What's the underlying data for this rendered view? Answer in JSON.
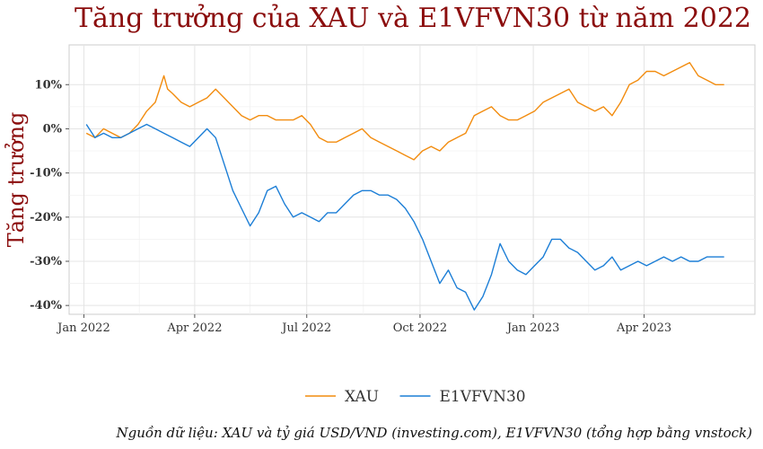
{
  "chart_data": {
    "type": "line",
    "title": "Tăng trưởng của XAU và E1VFVN30 từ năm 2022",
    "ylabel": "Tăng trưởng",
    "xlabel": "",
    "caption": "Nguồn dữ liệu: XAU và tỷ giá USD/VND (investing.com), E1VFVN30 (tổng hợp bằng vnstock)",
    "xlim": [
      "2021-12-20",
      "2023-06-30"
    ],
    "ylim": [
      -42,
      19
    ],
    "x_ticks": [
      {
        "date": "2022-01-01",
        "label": "Jan 2022"
      },
      {
        "date": "2022-04-01",
        "label": "Apr 2022"
      },
      {
        "date": "2022-07-01",
        "label": "Jul 2022"
      },
      {
        "date": "2022-10-01",
        "label": "Oct 2022"
      },
      {
        "date": "2023-01-01",
        "label": "Jan 2023"
      },
      {
        "date": "2023-04-01",
        "label": "Apr 2023"
      }
    ],
    "y_ticks": [
      {
        "value": 10,
        "label": "10%"
      },
      {
        "value": 0,
        "label": "0%"
      },
      {
        "value": -10,
        "label": "-10%"
      },
      {
        "value": -20,
        "label": "-20%"
      },
      {
        "value": -30,
        "label": "-30%"
      },
      {
        "value": -40,
        "label": "-40%"
      }
    ],
    "grid": true,
    "legend_position": "bottom",
    "series": [
      {
        "name": "XAU",
        "color": "#f28c0f",
        "points": [
          [
            "2022-01-03",
            -1
          ],
          [
            "2022-01-10",
            -2
          ],
          [
            "2022-01-17",
            0
          ],
          [
            "2022-01-24",
            -1
          ],
          [
            "2022-01-31",
            -2
          ],
          [
            "2022-02-07",
            -1
          ],
          [
            "2022-02-14",
            1
          ],
          [
            "2022-02-21",
            4
          ],
          [
            "2022-02-28",
            6
          ],
          [
            "2022-03-07",
            12
          ],
          [
            "2022-03-10",
            9
          ],
          [
            "2022-03-14",
            8
          ],
          [
            "2022-03-21",
            6
          ],
          [
            "2022-03-28",
            5
          ],
          [
            "2022-04-04",
            6
          ],
          [
            "2022-04-11",
            7
          ],
          [
            "2022-04-18",
            9
          ],
          [
            "2022-04-25",
            7
          ],
          [
            "2022-05-02",
            5
          ],
          [
            "2022-05-09",
            3
          ],
          [
            "2022-05-16",
            2
          ],
          [
            "2022-05-23",
            3
          ],
          [
            "2022-05-30",
            3
          ],
          [
            "2022-06-06",
            2
          ],
          [
            "2022-06-13",
            2
          ],
          [
            "2022-06-20",
            2
          ],
          [
            "2022-06-27",
            3
          ],
          [
            "2022-07-04",
            1
          ],
          [
            "2022-07-11",
            -2
          ],
          [
            "2022-07-18",
            -3
          ],
          [
            "2022-07-25",
            -3
          ],
          [
            "2022-08-01",
            -2
          ],
          [
            "2022-08-08",
            -1
          ],
          [
            "2022-08-15",
            0
          ],
          [
            "2022-08-22",
            -2
          ],
          [
            "2022-08-29",
            -3
          ],
          [
            "2022-09-05",
            -4
          ],
          [
            "2022-09-12",
            -5
          ],
          [
            "2022-09-19",
            -6
          ],
          [
            "2022-09-26",
            -7
          ],
          [
            "2022-10-03",
            -5
          ],
          [
            "2022-10-10",
            -4
          ],
          [
            "2022-10-17",
            -5
          ],
          [
            "2022-10-24",
            -3
          ],
          [
            "2022-10-31",
            -2
          ],
          [
            "2022-11-07",
            -1
          ],
          [
            "2022-11-14",
            3
          ],
          [
            "2022-11-21",
            4
          ],
          [
            "2022-11-28",
            5
          ],
          [
            "2022-12-05",
            3
          ],
          [
            "2022-12-12",
            2
          ],
          [
            "2022-12-19",
            2
          ],
          [
            "2022-12-26",
            3
          ],
          [
            "2023-01-02",
            4
          ],
          [
            "2023-01-09",
            6
          ],
          [
            "2023-01-16",
            7
          ],
          [
            "2023-01-23",
            8
          ],
          [
            "2023-01-30",
            9
          ],
          [
            "2023-02-06",
            6
          ],
          [
            "2023-02-13",
            5
          ],
          [
            "2023-02-20",
            4
          ],
          [
            "2023-02-27",
            5
          ],
          [
            "2023-03-06",
            3
          ],
          [
            "2023-03-13",
            6
          ],
          [
            "2023-03-20",
            10
          ],
          [
            "2023-03-27",
            11
          ],
          [
            "2023-04-03",
            13
          ],
          [
            "2023-04-10",
            13
          ],
          [
            "2023-04-17",
            12
          ],
          [
            "2023-04-24",
            13
          ],
          [
            "2023-05-01",
            14
          ],
          [
            "2023-05-08",
            15
          ],
          [
            "2023-05-15",
            12
          ],
          [
            "2023-05-22",
            11
          ],
          [
            "2023-05-29",
            10
          ],
          [
            "2023-06-05",
            10
          ]
        ]
      },
      {
        "name": "E1VFVN30",
        "color": "#1c7ed6",
        "points": [
          [
            "2022-01-03",
            1
          ],
          [
            "2022-01-10",
            -2
          ],
          [
            "2022-01-17",
            -1
          ],
          [
            "2022-01-24",
            -2
          ],
          [
            "2022-01-31",
            -2
          ],
          [
            "2022-02-07",
            -1
          ],
          [
            "2022-02-14",
            0
          ],
          [
            "2022-02-21",
            1
          ],
          [
            "2022-02-28",
            0
          ],
          [
            "2022-03-07",
            -1
          ],
          [
            "2022-03-14",
            -2
          ],
          [
            "2022-03-21",
            -3
          ],
          [
            "2022-03-28",
            -4
          ],
          [
            "2022-04-04",
            -2
          ],
          [
            "2022-04-11",
            0
          ],
          [
            "2022-04-18",
            -2
          ],
          [
            "2022-04-25",
            -8
          ],
          [
            "2022-05-02",
            -14
          ],
          [
            "2022-05-09",
            -18
          ],
          [
            "2022-05-16",
            -22
          ],
          [
            "2022-05-23",
            -19
          ],
          [
            "2022-05-30",
            -14
          ],
          [
            "2022-06-06",
            -13
          ],
          [
            "2022-06-13",
            -17
          ],
          [
            "2022-06-20",
            -20
          ],
          [
            "2022-06-27",
            -19
          ],
          [
            "2022-07-04",
            -20
          ],
          [
            "2022-07-11",
            -21
          ],
          [
            "2022-07-18",
            -19
          ],
          [
            "2022-07-25",
            -19
          ],
          [
            "2022-08-01",
            -17
          ],
          [
            "2022-08-08",
            -15
          ],
          [
            "2022-08-15",
            -14
          ],
          [
            "2022-08-22",
            -14
          ],
          [
            "2022-08-29",
            -15
          ],
          [
            "2022-09-05",
            -15
          ],
          [
            "2022-09-12",
            -16
          ],
          [
            "2022-09-19",
            -18
          ],
          [
            "2022-09-26",
            -21
          ],
          [
            "2022-10-03",
            -25
          ],
          [
            "2022-10-10",
            -30
          ],
          [
            "2022-10-17",
            -35
          ],
          [
            "2022-10-24",
            -32
          ],
          [
            "2022-10-31",
            -36
          ],
          [
            "2022-11-07",
            -37
          ],
          [
            "2022-11-14",
            -41
          ],
          [
            "2022-11-21",
            -38
          ],
          [
            "2022-11-28",
            -33
          ],
          [
            "2022-12-05",
            -26
          ],
          [
            "2022-12-12",
            -30
          ],
          [
            "2022-12-19",
            -32
          ],
          [
            "2022-12-26",
            -33
          ],
          [
            "2023-01-02",
            -31
          ],
          [
            "2023-01-09",
            -29
          ],
          [
            "2023-01-16",
            -25
          ],
          [
            "2023-01-23",
            -25
          ],
          [
            "2023-01-30",
            -27
          ],
          [
            "2023-02-06",
            -28
          ],
          [
            "2023-02-13",
            -30
          ],
          [
            "2023-02-20",
            -32
          ],
          [
            "2023-02-27",
            -31
          ],
          [
            "2023-03-06",
            -29
          ],
          [
            "2023-03-13",
            -32
          ],
          [
            "2023-03-20",
            -31
          ],
          [
            "2023-03-27",
            -30
          ],
          [
            "2023-04-03",
            -31
          ],
          [
            "2023-04-10",
            -30
          ],
          [
            "2023-04-17",
            -29
          ],
          [
            "2023-04-24",
            -30
          ],
          [
            "2023-05-01",
            -29
          ],
          [
            "2023-05-08",
            -30
          ],
          [
            "2023-05-15",
            -30
          ],
          [
            "2023-05-22",
            -29
          ],
          [
            "2023-05-29",
            -29
          ],
          [
            "2023-06-05",
            -29
          ]
        ]
      }
    ]
  }
}
